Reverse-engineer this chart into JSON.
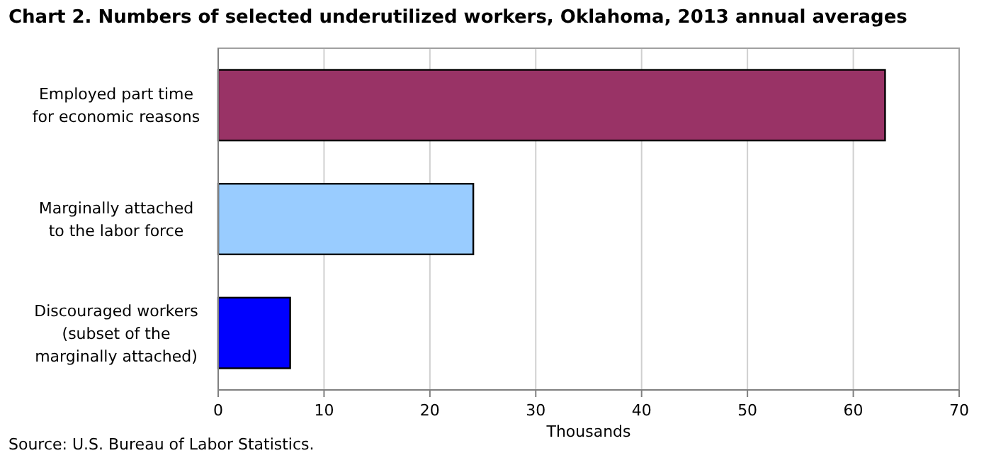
{
  "chart_data": {
    "type": "bar",
    "orientation": "horizontal",
    "title": "Chart 2.  Numbers of selected underutilized workers, Oklahoma, 2013 annual averages",
    "categories": [
      "Employed part time for economic reasons",
      "Marginally attached to the labor force",
      "Discouraged workers (subset of the marginally attached)"
    ],
    "values": [
      63.0,
      24.1,
      6.8
    ],
    "colors": [
      "#993366",
      "#99ccff",
      "#0000ff"
    ],
    "xlim": [
      0,
      70
    ],
    "xticks": [
      0,
      10,
      20,
      30,
      40,
      50,
      60,
      70
    ],
    "xlabel": "Thousands",
    "grid": "x",
    "annotations": [
      "Source: U.S. Bureau of Labor Statistics."
    ]
  }
}
